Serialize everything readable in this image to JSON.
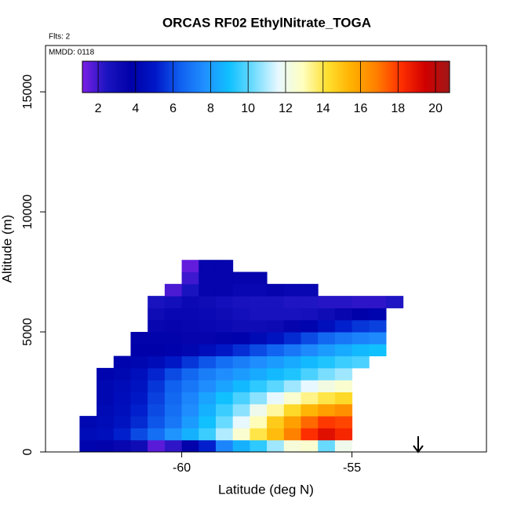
{
  "chart_data": {
    "type": "heatmap",
    "title": "ORCAS RF02 EthylNitrate_TOGA",
    "note_flights": "Flts: 2",
    "note_date": "MMDD: 0118",
    "x_label": "Latitude (deg N)",
    "y_label": "Altitude (m)",
    "xlim": [
      -64.0,
      -51.05
    ],
    "ylim": [
      0,
      16930
    ],
    "xticks": [
      -60,
      -55
    ],
    "yticks": [
      0,
      5000,
      10000,
      15000
    ],
    "x": [
      -62.75,
      -62.25,
      -61.75,
      -61.25,
      -60.75,
      -60.25,
      -59.75,
      -59.25,
      -58.75,
      -58.25,
      -57.75,
      -57.25,
      -56.75,
      -56.25,
      -55.75,
      -55.25,
      -54.75,
      -54.25,
      -53.75
    ],
    "y": [
      250,
      750,
      1250,
      1750,
      2250,
      2750,
      3250,
      3750,
      4250,
      4750,
      5250,
      5750,
      6250,
      6750,
      7250,
      7750
    ],
    "z": [
      [
        4.0,
        3.6,
        3.4,
        3.0,
        1.6,
        2.2,
        3.6,
        5.2,
        7.4,
        8.6,
        9.4,
        10.8,
        12.4,
        12.6,
        10.2,
        12.0,
        null,
        null,
        null
      ],
      [
        4.4,
        4.6,
        5.2,
        6.0,
        6.8,
        7.8,
        8.6,
        9.6,
        11.0,
        12.6,
        14.0,
        15.2,
        16.8,
        18.2,
        19.0,
        18.4,
        null,
        null,
        null
      ],
      [
        4.2,
        4.4,
        4.8,
        5.4,
        6.2,
        7.0,
        8.0,
        9.0,
        10.2,
        11.6,
        13.0,
        14.8,
        16.0,
        17.2,
        18.0,
        17.8,
        null,
        null,
        null
      ],
      [
        null,
        4.3,
        4.6,
        5.2,
        6.0,
        6.8,
        7.6,
        8.6,
        9.6,
        10.6,
        12.0,
        13.2,
        14.4,
        15.4,
        16.0,
        16.4,
        null,
        null,
        null
      ],
      [
        null,
        4.2,
        4.5,
        5.0,
        5.8,
        6.6,
        7.4,
        8.2,
        9.0,
        9.8,
        10.6,
        11.6,
        12.6,
        13.4,
        14.0,
        14.4,
        null,
        null,
        null
      ],
      [
        null,
        4.2,
        4.4,
        4.8,
        5.6,
        6.4,
        7.0,
        7.6,
        8.2,
        8.8,
        9.4,
        10.0,
        10.8,
        11.6,
        12.2,
        12.6,
        null,
        null,
        null
      ],
      [
        null,
        4.0,
        4.2,
        4.6,
        5.3,
        6.0,
        6.6,
        7.2,
        7.6,
        8.0,
        8.4,
        8.8,
        9.2,
        9.8,
        10.4,
        10.8,
        null,
        null,
        null
      ],
      [
        null,
        null,
        4.0,
        4.1,
        4.4,
        5.0,
        5.6,
        6.2,
        6.8,
        7.2,
        7.6,
        8.0,
        8.4,
        8.8,
        9.2,
        9.6,
        9.8,
        null,
        null
      ],
      [
        null,
        null,
        null,
        3.8,
        3.8,
        3.9,
        4.1,
        4.5,
        5.0,
        5.5,
        6.0,
        6.5,
        7.0,
        7.5,
        8.0,
        8.4,
        8.8,
        9.0,
        null
      ],
      [
        null,
        null,
        null,
        3.6,
        3.6,
        3.6,
        3.5,
        3.5,
        3.6,
        3.9,
        4.3,
        4.8,
        5.4,
        6.0,
        6.6,
        7.0,
        7.3,
        7.5,
        null
      ],
      [
        null,
        null,
        null,
        null,
        3.4,
        3.5,
        3.4,
        3.3,
        3.2,
        3.0,
        3.0,
        3.1,
        3.5,
        4.0,
        4.6,
        5.2,
        5.6,
        5.8,
        null
      ],
      [
        null,
        null,
        null,
        null,
        3.0,
        3.3,
        3.3,
        3.2,
        3.0,
        2.8,
        2.6,
        2.6,
        2.6,
        2.7,
        3.0,
        3.4,
        3.8,
        4.0,
        null
      ],
      [
        null,
        null,
        null,
        null,
        2.5,
        2.8,
        3.2,
        3.0,
        2.8,
        2.6,
        2.5,
        2.5,
        2.4,
        2.4,
        2.3,
        2.3,
        2.2,
        2.2,
        2.4
      ],
      [
        null,
        null,
        null,
        null,
        null,
        1.8,
        2.5,
        3.5,
        3.5,
        3.3,
        3.3,
        3.5,
        3.3,
        3.3,
        null,
        null,
        null,
        null,
        null
      ],
      [
        null,
        null,
        null,
        null,
        null,
        null,
        2.0,
        3.5,
        3.5,
        3.5,
        3.5,
        null,
        null,
        null,
        null,
        null,
        null,
        null,
        null
      ],
      [
        null,
        null,
        null,
        null,
        null,
        null,
        1.5,
        3.5,
        3.5,
        null,
        null,
        null,
        null,
        null,
        null,
        null,
        null,
        null,
        null
      ]
    ],
    "colorbar": {
      "clim": [
        1.16,
        20.75
      ],
      "ticks": [
        2,
        4,
        6,
        8,
        10,
        12,
        14,
        16,
        18,
        20
      ],
      "colors": [
        "#7b1fe6",
        "#1a14c0",
        "#0000a8",
        "#0018c8",
        "#1060f0",
        "#2090ff",
        "#10c0ff",
        "#70dcff",
        "#e8f8ff",
        "#ffffc0",
        "#ffe030",
        "#ffb000",
        "#ff8000",
        "#ff3000",
        "#d00000",
        "#a01818"
      ]
    }
  }
}
